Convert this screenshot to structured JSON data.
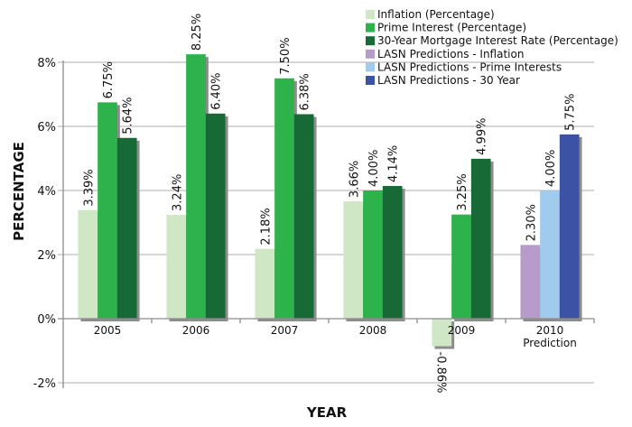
{
  "chart_data": {
    "type": "bar",
    "title": "",
    "xlabel": "YEAR",
    "ylabel": "PERCENTAGE",
    "ylim": [
      -2,
      8
    ],
    "yticks": [
      -2,
      0,
      2,
      4,
      6,
      8
    ],
    "ytick_labels": [
      "-2%",
      "0%",
      "2%",
      "4%",
      "6%",
      "8%"
    ],
    "grid": true,
    "legend_position": "top-right",
    "categories": [
      {
        "line1": "2005",
        "line2": ""
      },
      {
        "line1": "2006",
        "line2": ""
      },
      {
        "line1": "2007",
        "line2": ""
      },
      {
        "line1": "2008",
        "line2": ""
      },
      {
        "line1": "2009",
        "line2": ""
      },
      {
        "line1": "2010",
        "line2": "Prediction"
      }
    ],
    "series": [
      {
        "name": "Inflation (Percentage)",
        "color": "#cfe7c5",
        "slot": 0,
        "values": [
          3.39,
          3.24,
          2.18,
          3.66,
          -0.86,
          null
        ],
        "labels": [
          "3.39%",
          "3.24%",
          "2.18%",
          "3.66%",
          "-0.86%",
          null
        ]
      },
      {
        "name": "Prime Interest (Percentage)",
        "color": "#2eb24b",
        "slot": 1,
        "values": [
          6.75,
          8.25,
          7.5,
          4.0,
          3.25,
          null
        ],
        "labels": [
          "6.75%",
          "8.25%",
          "7.50%",
          "4.00%",
          "3.25%",
          null
        ]
      },
      {
        "name": "30-Year Mortgage Interest Rate (Percentage)",
        "color": "#176a35",
        "slot": 2,
        "values": [
          5.64,
          6.4,
          6.38,
          4.14,
          4.99,
          null
        ],
        "labels": [
          "5.64%",
          "6.40%",
          "6.38%",
          "4.14%",
          "4.99%",
          null
        ]
      },
      {
        "name": "LASN Predictions - Inflation",
        "color": "#b79ccb",
        "slot": 0,
        "values": [
          null,
          null,
          null,
          null,
          null,
          2.3
        ],
        "labels": [
          null,
          null,
          null,
          null,
          null,
          "2.30%"
        ]
      },
      {
        "name": "LASN Predictions - Prime Interests",
        "color": "#a0cbec",
        "slot": 1,
        "values": [
          null,
          null,
          null,
          null,
          null,
          4.0
        ],
        "labels": [
          null,
          null,
          null,
          null,
          null,
          "4.00%"
        ]
      },
      {
        "name": "LASN Predictions - 30 Year",
        "color": "#3b52a5",
        "slot": 2,
        "values": [
          null,
          null,
          null,
          null,
          null,
          5.75
        ],
        "labels": [
          null,
          null,
          null,
          null,
          null,
          "5.75%"
        ]
      }
    ]
  }
}
